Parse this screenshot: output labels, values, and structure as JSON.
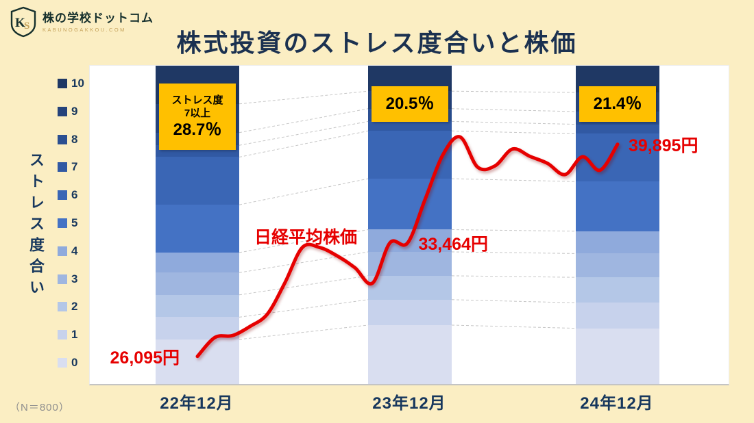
{
  "header": {
    "logo": {
      "text": "株の学校ドットコム",
      "subtext": "KABUNOGAKKOU.COM",
      "icon": "ks-shield-logo-icon"
    },
    "title": "株式投資のストレス度合いと株価"
  },
  "footnote": "（N＝800）",
  "colors": {
    "background": "#FBEEC3",
    "plot_background": "#FFFFFF",
    "accent_red": "#E60000",
    "callout_background": "#FFC000",
    "axis_text": "#17375D",
    "connector_gray": "#C6C6C6"
  },
  "chart_data": {
    "type": "bar",
    "subtype": "stacked-percent-columns-with-overlay-line",
    "title": "株式投資のストレス度合いと株価",
    "ylabel": "ストレス度合い",
    "legend_position": "left",
    "grid": false,
    "categories": [
      "22年12月",
      "23年12月",
      "24年12月"
    ],
    "series": [
      {
        "name": "10",
        "color": "#1F3864",
        "values": [
          12,
          8,
          8.4
        ]
      },
      {
        "name": "9",
        "color": "#25437B",
        "values": [
          9,
          5.5,
          6
        ]
      },
      {
        "name": "8",
        "color": "#2B4F91",
        "values": [
          4,
          4,
          4
        ]
      },
      {
        "name": "7",
        "color": "#3159A3",
        "values": [
          3.7,
          3,
          3
        ]
      },
      {
        "name": "6",
        "color": "#3A66B5",
        "values": [
          15,
          15,
          15
        ]
      },
      {
        "name": "5",
        "color": "#4472C4",
        "values": [
          15,
          16,
          15.6
        ]
      },
      {
        "name": "4",
        "color": "#8FAADC",
        "values": [
          6.3,
          7,
          7
        ]
      },
      {
        "name": "3",
        "color": "#9FB6E0",
        "values": [
          7,
          7.5,
          7.5
        ]
      },
      {
        "name": "2",
        "color": "#B4C7E7",
        "values": [
          7,
          7.5,
          8
        ]
      },
      {
        "name": "1",
        "color": "#C7D2EC",
        "values": [
          7,
          8,
          8
        ]
      },
      {
        "name": "0",
        "color": "#D9DEF0",
        "values": [
          14,
          18.5,
          17.5
        ]
      }
    ],
    "callouts": [
      {
        "lines": [
          "ストレス度",
          "7以上"
        ],
        "value": "28.7％"
      },
      {
        "value": "20.5％"
      },
      {
        "value": "21.4％"
      }
    ],
    "line": {
      "name": "日経平均株価",
      "color": "#E60000",
      "value_range": [
        24300,
        45000
      ],
      "values": [
        26095,
        27327,
        27446,
        28041,
        28856,
        30888,
        33189,
        33172,
        32619,
        31858,
        30859,
        33487,
        33464,
        36287,
        39166,
        40369,
        38406,
        38488,
        39583,
        39102,
        38648,
        37920,
        39081,
        38208,
        39895
      ],
      "labels": [
        {
          "text": "26,095円",
          "month": 0,
          "side": "left"
        },
        {
          "text": "33,464円",
          "month": 12,
          "side": "right"
        },
        {
          "text": "39,895円",
          "month": 24,
          "side": "right"
        }
      ]
    }
  }
}
